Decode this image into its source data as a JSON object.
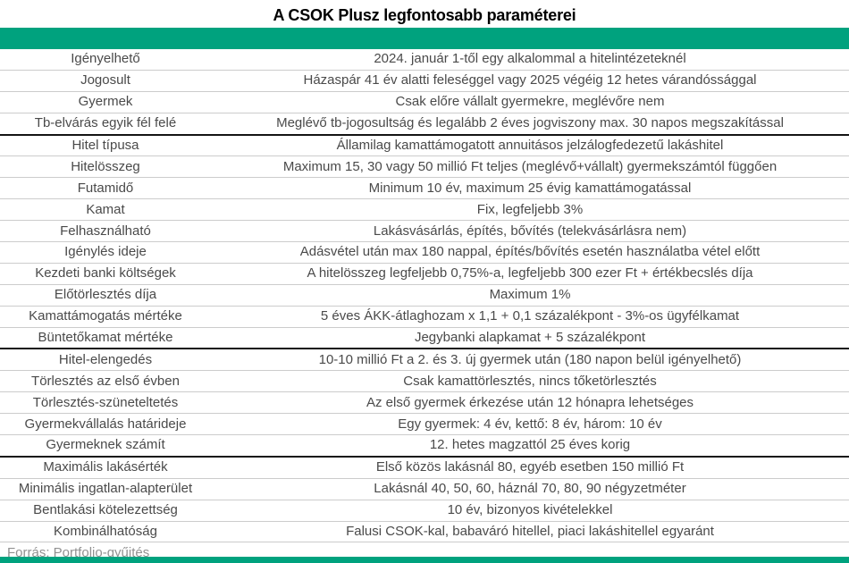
{
  "title": "A CSOK Plusz legfontosabb paraméterei",
  "source_note": "Forrás: Portfolio-gyűjtés",
  "colors": {
    "accent_green": "#00A27E",
    "title_text": "#000000",
    "body_text": "#4A4A4A",
    "row_divider": "#CCCCCC",
    "group_divider": "#141414",
    "source_text": "#919191",
    "background": "#FFFFFF"
  },
  "chart_data": {
    "type": "table",
    "title": "A CSOK Plusz legfontosabb paraméterei",
    "source": "Forrás: Portfolio-gyűjtés",
    "group_separators_after_rows": [
      4,
      14,
      19
    ],
    "rows": [
      {
        "label": "Igényelhető",
        "value": "2024. január 1-től egy alkalommal a hitelintézeteknél",
        "thick_below": false
      },
      {
        "label": "Jogosult",
        "value": "Házaspár 41 év alatti feleséggel vagy 2025 végéig 12 hetes várandóssággal",
        "thick_below": false
      },
      {
        "label": "Gyermek",
        "value": "Csak előre vállalt gyermekre, meglévőre nem",
        "thick_below": false
      },
      {
        "label": "Tb-elvárás egyik fél felé",
        "value": "Meglévő tb-jogosultság és legalább 2 éves jogviszony max. 30 napos megszakítással",
        "thick_below": true
      },
      {
        "label": "Hitel típusa",
        "value": "Államilag kamattámogatott annuitásos jelzálogfedezetű lakáshitel",
        "thick_below": false
      },
      {
        "label": "Hitelösszeg",
        "value": "Maximum 15, 30 vagy 50 millió Ft teljes (meglévő+vállalt) gyermekszámtól függően",
        "thick_below": false
      },
      {
        "label": "Futamidő",
        "value": "Minimum 10 év, maximum 25 évig kamattámogatással",
        "thick_below": false
      },
      {
        "label": "Kamat",
        "value": "Fix, legfeljebb 3%",
        "thick_below": false
      },
      {
        "label": "Felhasználható",
        "value": "Lakásvásárlás, építés, bővítés (telekvásárlásra nem)",
        "thick_below": false
      },
      {
        "label": "Igénylés ideje",
        "value": "Adásvétel után max 180 nappal, építés/bővítés esetén használatba vétel előtt",
        "thick_below": false
      },
      {
        "label": "Kezdeti banki költségek",
        "value": "A hitelösszeg legfeljebb 0,75%-a, legfeljebb 300 ezer Ft + értékbecslés díja",
        "thick_below": false
      },
      {
        "label": "Előtörlesztés díja",
        "value": "Maximum 1%",
        "thick_below": false
      },
      {
        "label": "Kamattámogatás mértéke",
        "value": "5 éves ÁKK-átlaghozam x 1,1 + 0,1 százalékpont - 3%-os ügyfélkamat",
        "thick_below": false
      },
      {
        "label": "Büntetőkamat mértéke",
        "value": "Jegybanki alapkamat + 5 százalékpont",
        "thick_below": true
      },
      {
        "label": "Hitel-elengedés",
        "value": "10-10 millió Ft a 2. és 3. új gyermek után (180 napon belül igényelhető)",
        "thick_below": false
      },
      {
        "label": "Törlesztés az első évben",
        "value": "Csak kamattörlesztés, nincs tőketörlesztés",
        "thick_below": false
      },
      {
        "label": "Törlesztés-szüneteltetés",
        "value": "Az első gyermek érkezése után 12 hónapra lehetséges",
        "thick_below": false
      },
      {
        "label": "Gyermekvállalás határideje",
        "value": "Egy gyermek: 4 év, kettő: 8 év, három: 10 év",
        "thick_below": false
      },
      {
        "label": "Gyermeknek számít",
        "value": "12. hetes magzattól 25 éves korig",
        "thick_below": true
      },
      {
        "label": "Maximális lakásérték",
        "value": "Első közös lakásnál 80, egyéb esetben 150 millió Ft",
        "thick_below": false
      },
      {
        "label": "Minimális ingatlan-alapterület",
        "value": "Lakásnál 40, 50, 60, háznál 70, 80, 90 négyzetméter",
        "thick_below": false
      },
      {
        "label": "Bentlakási kötelezettség",
        "value": "10 év, bizonyos kivételekkel",
        "thick_below": false
      },
      {
        "label": "Kombinálhatóság",
        "value": "Falusi CSOK-kal, babaváró hitellel, piaci lakáshitellel egyaránt",
        "thick_below": false
      }
    ]
  }
}
